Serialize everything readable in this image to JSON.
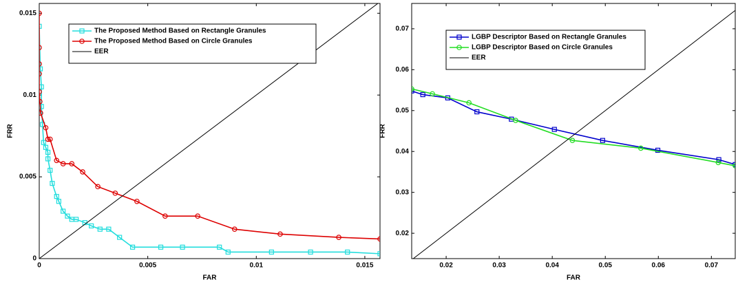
{
  "chart_data": [
    {
      "type": "line",
      "xlabel": "FAR",
      "ylabel": "FRR",
      "xlim": [
        0,
        0.0157
      ],
      "ylim": [
        0,
        0.0156
      ],
      "xticks": [
        0,
        0.005,
        0.01,
        0.015
      ],
      "yticks": [
        0,
        0.005,
        0.01,
        0.015
      ],
      "series": [
        {
          "name": "The Proposed Method Based on Rectangle Granules",
          "color": "#22dddd",
          "marker": "square",
          "x": [
            0,
            5e-05,
            0.0001,
            0.0001,
            0.00015,
            0.0002,
            0.0003,
            0.0004,
            0.0004,
            0.0005,
            0.0006,
            0.0008,
            0.0009,
            0.0011,
            0.0013,
            0.0015,
            0.0017,
            0.0021,
            0.0024,
            0.0028,
            0.0032,
            0.0037,
            0.0043,
            0.0056,
            0.0066,
            0.0083,
            0.0087,
            0.0107,
            0.0125,
            0.0142,
            0.0157
          ],
          "values": [
            0.0142,
            0.0116,
            0.0105,
            0.0093,
            0.0082,
            0.0071,
            0.0068,
            0.0065,
            0.0061,
            0.0054,
            0.0046,
            0.0038,
            0.0035,
            0.0029,
            0.0026,
            0.0024,
            0.0024,
            0.0022,
            0.002,
            0.0018,
            0.0018,
            0.0013,
            0.0007,
            0.0007,
            0.0007,
            0.0007,
            0.0004,
            0.0004,
            0.0004,
            0.0004,
            0.0003
          ]
        },
        {
          "name": "The Proposed Method Based on Circle Granules",
          "color": "#dd0000",
          "marker": "circle",
          "x": [
            0,
            0,
            0,
            0,
            0,
            3e-05,
            6e-05,
            0.0003,
            0.0004,
            0.0005,
            0.0008,
            0.0011,
            0.0015,
            0.002,
            0.0027,
            0.0035,
            0.0045,
            0.0058,
            0.0073,
            0.009,
            0.0111,
            0.0138,
            0.0157
          ],
          "values": [
            0.015,
            0.0129,
            0.0119,
            0.0113,
            0.0102,
            0.0096,
            0.0089,
            0.008,
            0.0073,
            0.0073,
            0.006,
            0.0058,
            0.0058,
            0.0053,
            0.0044,
            0.004,
            0.0035,
            0.0026,
            0.0026,
            0.0018,
            0.0015,
            0.0013,
            0.0012
          ]
        },
        {
          "name": "EER",
          "color": "#000000",
          "marker": "none",
          "x": [
            0,
            0.0157
          ],
          "values": [
            0,
            0.0157
          ]
        }
      ]
    },
    {
      "type": "line",
      "xlabel": "FAR",
      "ylabel": "FRR",
      "xlim": [
        0.0135,
        0.0745
      ],
      "ylim": [
        0.0138,
        0.0762
      ],
      "xticks": [
        0.02,
        0.03,
        0.04,
        0.05,
        0.06,
        0.07
      ],
      "yticks": [
        0.02,
        0.03,
        0.04,
        0.05,
        0.06,
        0.07
      ],
      "series": [
        {
          "name": "LGBP Descriptor Based on Rectangle Granules",
          "color": "#0000cc",
          "marker": "square",
          "x": [
            0.0135,
            0.0156,
            0.0203,
            0.0258,
            0.0323,
            0.0404,
            0.0495,
            0.0599,
            0.0714,
            0.0745
          ],
          "values": [
            0.0548,
            0.0539,
            0.0531,
            0.0497,
            0.0479,
            0.0454,
            0.0427,
            0.0403,
            0.038,
            0.0368
          ]
        },
        {
          "name": "LGBP Descriptor Based on Circle Granules",
          "color": "#22dd22",
          "marker": "circle",
          "x": [
            0.0135,
            0.0174,
            0.0243,
            0.0331,
            0.0438,
            0.0567,
            0.0713,
            0.0745
          ],
          "values": [
            0.0553,
            0.0541,
            0.0519,
            0.0476,
            0.0427,
            0.0408,
            0.0373,
            0.0365
          ]
        },
        {
          "name": "EER",
          "color": "#000000",
          "marker": "none",
          "x": [
            0.0135,
            0.0745
          ],
          "values": [
            0.0135,
            0.0745
          ]
        }
      ]
    }
  ]
}
